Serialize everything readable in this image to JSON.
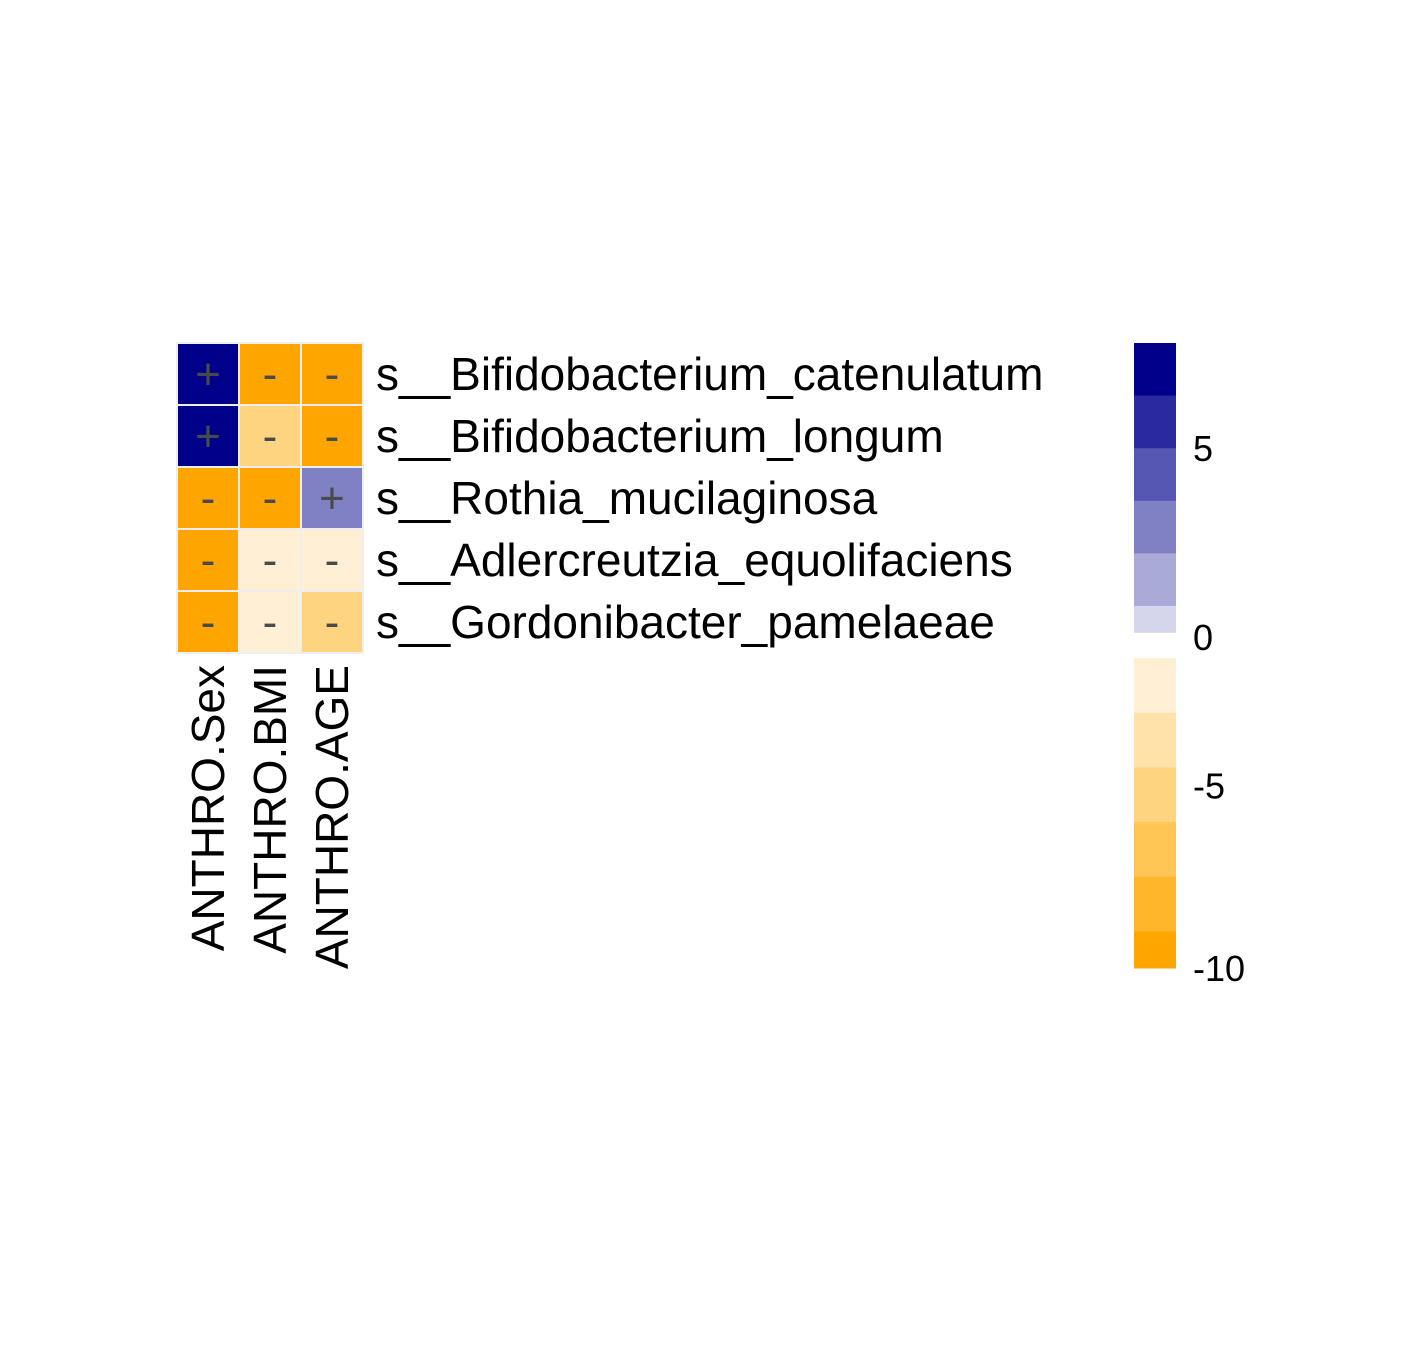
{
  "chart_data": {
    "type": "heatmap",
    "rows": [
      "s__Bifidobacterium_catenulatum",
      "s__Bifidobacterium_longum",
      "s__Rothia_mucilaginosa",
      "s__Adlercreutzia_equolifaciens",
      "s__Gordonibacter_pamelaeae"
    ],
    "columns": [
      "ANTHRO.Sex",
      "ANTHRO.BMI",
      "ANTHRO.AGE"
    ],
    "values": [
      [
        7,
        -10,
        -10
      ],
      [
        6,
        -6,
        -10
      ],
      [
        -10,
        -10,
        3
      ],
      [
        -10,
        -1.5,
        -3
      ],
      [
        -10,
        -1.5,
        -6
      ]
    ],
    "signs": [
      [
        "+",
        "-",
        "-"
      ],
      [
        "+",
        "-",
        "-"
      ],
      [
        "-",
        "-",
        "+"
      ],
      [
        "-",
        "-",
        "-"
      ],
      [
        "-",
        "-",
        "-"
      ]
    ],
    "legend": {
      "ticks": [
        "5",
        "0",
        "-5",
        "-10"
      ],
      "tick_values": [
        5,
        0,
        -5,
        -10
      ],
      "range": [
        -10,
        7
      ],
      "positive_bins": [
        {
          "from": 6,
          "to": 7,
          "color": "#00008b"
        },
        {
          "from": 5,
          "to": 6,
          "color": "#2a2a9e"
        },
        {
          "from": 4,
          "to": 5,
          "color": "#5555b2"
        },
        {
          "from": 3,
          "to": 4,
          "color": "#8080c5"
        },
        {
          "from": 2,
          "to": 3,
          "color": "#aaaad8"
        },
        {
          "from": 1.5,
          "to": 2,
          "color": "#d5d5ec"
        }
      ],
      "negative_bins": [
        {
          "from": -1.5,
          "to": -3,
          "color": "#fff0d5"
        },
        {
          "from": -3,
          "to": -4.5,
          "color": "#ffe2aa"
        },
        {
          "from": -4.5,
          "to": -6,
          "color": "#ffd480"
        },
        {
          "from": -6,
          "to": -7.5,
          "color": "#ffc555"
        },
        {
          "from": -7.5,
          "to": -9,
          "color": "#ffb62a"
        },
        {
          "from": -9,
          "to": -10,
          "color": "#ffa500"
        }
      ]
    },
    "colors": {
      "high": "#00008b",
      "low": "#ffa500",
      "cell_border": "#eeeeee",
      "sign_text": "#4a4a4a"
    }
  }
}
